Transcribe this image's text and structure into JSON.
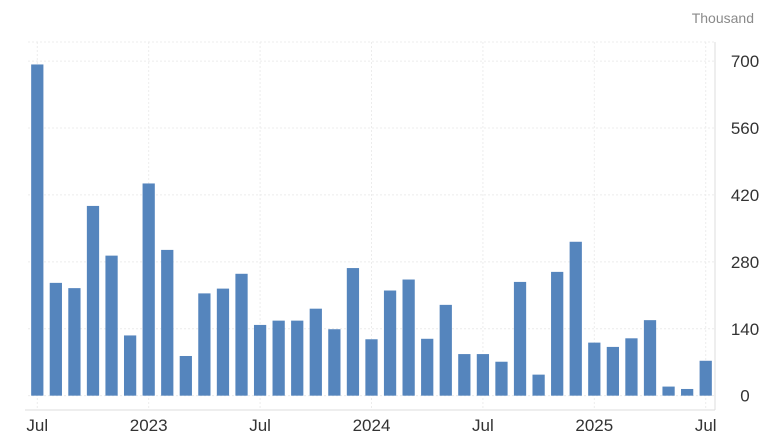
{
  "chart_data": {
    "type": "bar",
    "unit_label": "Thousand",
    "x": [
      "2022-07",
      "2022-08",
      "2022-09",
      "2022-10",
      "2022-11",
      "2022-12",
      "2023-01",
      "2023-02",
      "2023-03",
      "2023-04",
      "2023-05",
      "2023-06",
      "2023-07",
      "2023-08",
      "2023-09",
      "2023-10",
      "2023-11",
      "2023-12",
      "2024-01",
      "2024-02",
      "2024-03",
      "2024-04",
      "2024-05",
      "2024-06",
      "2024-07",
      "2024-08",
      "2024-09",
      "2024-10",
      "2024-11",
      "2024-12",
      "2025-01",
      "2025-02",
      "2025-03",
      "2025-04",
      "2025-05",
      "2025-06",
      "2025-07"
    ],
    "values": [
      693,
      236,
      225,
      397,
      293,
      126,
      444,
      305,
      83,
      214,
      224,
      255,
      148,
      157,
      157,
      182,
      139,
      267,
      118,
      220,
      243,
      119,
      190,
      87,
      87,
      71,
      238,
      44,
      259,
      322,
      111,
      102,
      120,
      158,
      19,
      14,
      73
    ],
    "x_tick_labels": [
      {
        "x": "2022-07",
        "label": "Jul"
      },
      {
        "x": "2023-01",
        "label": "2023"
      },
      {
        "x": "2023-07",
        "label": "Jul"
      },
      {
        "x": "2024-01",
        "label": "2024"
      },
      {
        "x": "2024-07",
        "label": "Jul"
      },
      {
        "x": "2025-01",
        "label": "2025"
      },
      {
        "x": "2025-07",
        "label": "Jul"
      }
    ],
    "y_ticks": [
      0,
      140,
      280,
      420,
      560,
      700
    ],
    "ylim": [
      -30,
      740
    ],
    "y_axis_side": "right",
    "grid": true,
    "bar_color": "#5585bd"
  }
}
